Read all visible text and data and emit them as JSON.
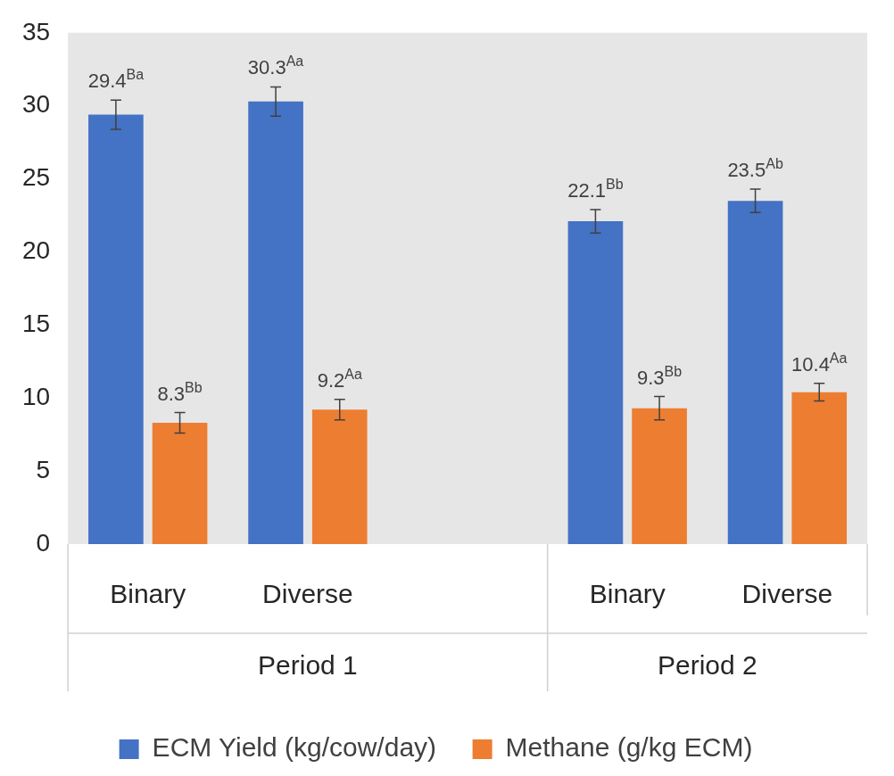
{
  "chart_data": {
    "type": "bar",
    "categories": [
      "Binary",
      "Diverse",
      null,
      "Binary",
      "Diverse"
    ],
    "series": [
      {
        "name": "ECM Yield (kg/cow/day)",
        "color": "#4472c4",
        "values": [
          29.4,
          30.3,
          null,
          22.1,
          23.5
        ],
        "errors": [
          1.0,
          1.0,
          null,
          0.8,
          0.8
        ],
        "value_labels": [
          "29.4$^{Ba}$",
          "30.3$^{Aa}$",
          null,
          "22.1$^{Bb}$",
          "23.5$^{Ab}$"
        ]
      },
      {
        "name": "Methane (g/kg ECM)",
        "color": "#ed7d31",
        "values": [
          8.3,
          9.2,
          null,
          9.3,
          10.4
        ],
        "errors": [
          0.7,
          0.7,
          null,
          0.8,
          0.6
        ],
        "value_labels": [
          "8.3$^{Bb}$",
          "9.2$^{Aa}$",
          null,
          "9.3$^{Bb}$",
          "10.4$^{Aa}$"
        ]
      }
    ],
    "ylim": [
      0,
      35
    ],
    "yticks": [
      0,
      5,
      10,
      15,
      20,
      25,
      30,
      35
    ],
    "grid": false,
    "legend": "bottom",
    "annotations": [
      "Period 1",
      "Period 2"
    ]
  }
}
